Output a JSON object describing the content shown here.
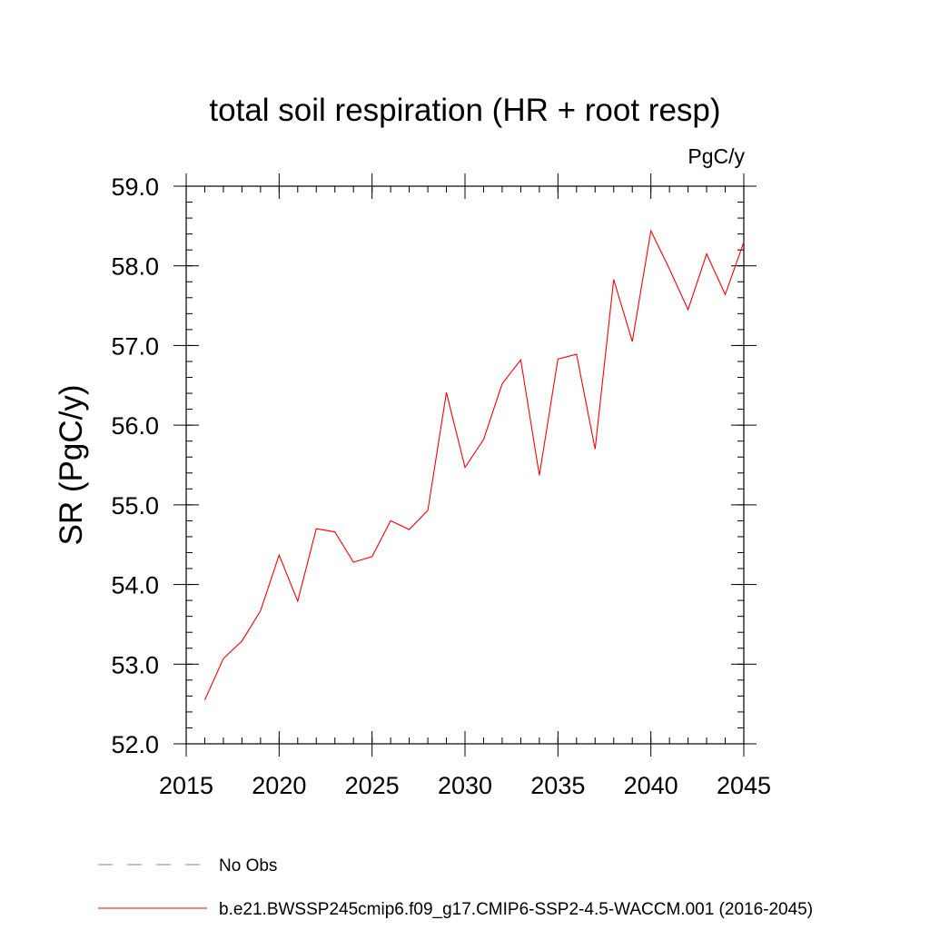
{
  "chart_data": {
    "type": "line",
    "title": "total soil respiration (HR + root resp)",
    "units_label": "PgC/y",
    "ylabel": "SR  (PgC/y)",
    "xlabel": "",
    "xlim": [
      2015,
      2045
    ],
    "ylim": [
      52.0,
      59.0
    ],
    "x_ticks": [
      "2015",
      "2020",
      "2025",
      "2030",
      "2035",
      "2040",
      "2045"
    ],
    "y_ticks": [
      "52.0",
      "53.0",
      "54.0",
      "55.0",
      "56.0",
      "57.0",
      "58.0",
      "59.0"
    ],
    "x_minor_step": 1,
    "y_minor_step": 0.2,
    "grid": false,
    "legend_position": "bottom",
    "series": [
      {
        "name": "No Obs",
        "color": "#8080c8",
        "dash": "dashed",
        "x": [],
        "y": []
      },
      {
        "name": "b.e21.BWSSP245cmip6.f09_g17.CMIP6-SSP2-4.5-WACCM.001 (2016-2045)",
        "color": "#ff0000",
        "dash": "solid",
        "x": [
          2016,
          2017,
          2018,
          2019,
          2020,
          2021,
          2022,
          2023,
          2024,
          2025,
          2026,
          2027,
          2028,
          2029,
          2030,
          2031,
          2032,
          2033,
          2034,
          2035,
          2036,
          2037,
          2038,
          2039,
          2040,
          2041,
          2042,
          2043,
          2044,
          2045
        ],
        "y": [
          52.55,
          53.07,
          53.29,
          53.67,
          54.37,
          53.79,
          54.7,
          54.66,
          54.28,
          54.35,
          54.8,
          54.69,
          54.93,
          56.41,
          55.47,
          55.82,
          56.52,
          56.82,
          55.37,
          56.83,
          56.89,
          55.7,
          57.83,
          57.05,
          58.44,
          57.96,
          57.45,
          58.15,
          57.64,
          58.3
        ]
      }
    ]
  }
}
